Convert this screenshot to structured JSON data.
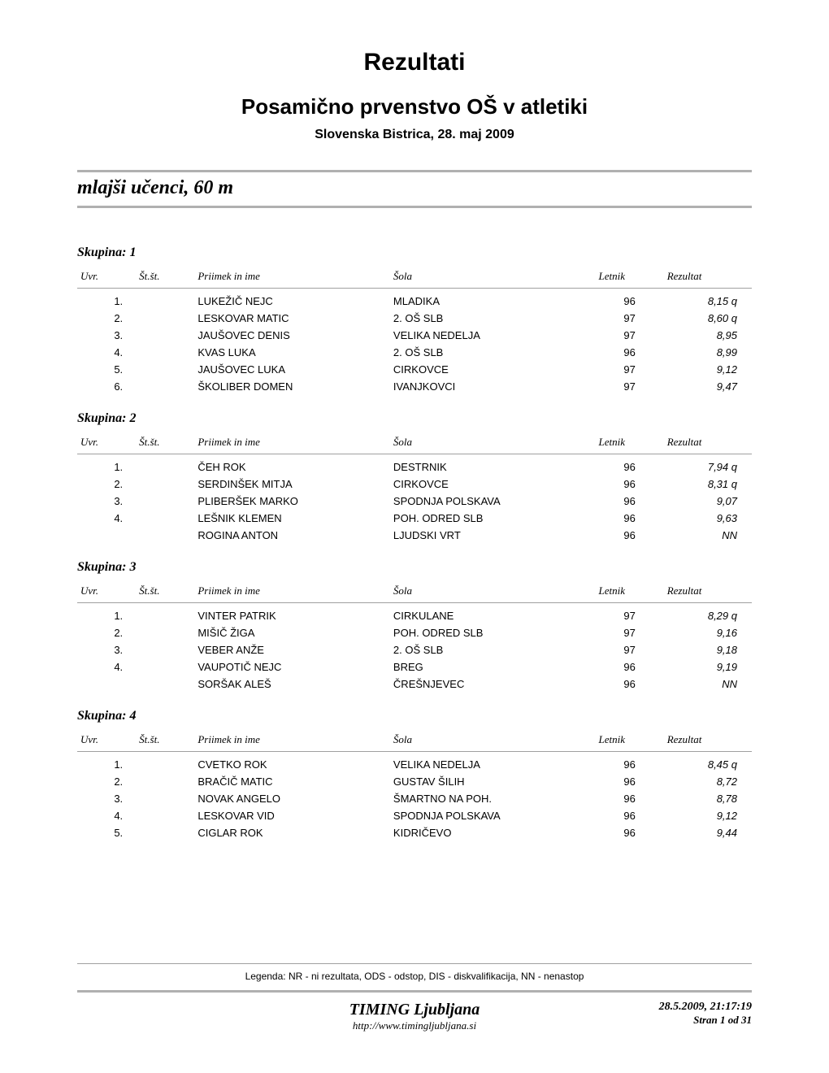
{
  "header": {
    "title_main": "Rezultati",
    "title_sub": "Posamično prvenstvo OŠ v atletiki",
    "location_date": "Slovenska Bistrica, 28. maj 2009"
  },
  "event": {
    "title": "mlajši učenci, 60 m"
  },
  "columns": {
    "uvr": "Uvr.",
    "stst": "Št.št.",
    "name": "Priimek in ime",
    "school": "Šola",
    "year": "Letnik",
    "result": "Rezultat"
  },
  "groups": [
    {
      "label": "Skupina: 1",
      "rows": [
        {
          "uvr": "1.",
          "stst": "",
          "name": "LUKEŽIČ NEJC",
          "school": "MLADIKA",
          "year": "96",
          "result": "8,15 q"
        },
        {
          "uvr": "2.",
          "stst": "",
          "name": "LESKOVAR MATIC",
          "school": "2. OŠ SLB",
          "year": "97",
          "result": "8,60 q"
        },
        {
          "uvr": "3.",
          "stst": "",
          "name": "JAUŠOVEC DENIS",
          "school": "VELIKA NEDELJA",
          "year": "97",
          "result": "8,95"
        },
        {
          "uvr": "4.",
          "stst": "",
          "name": "KVAS LUKA",
          "school": "2. OŠ SLB",
          "year": "96",
          "result": "8,99"
        },
        {
          "uvr": "5.",
          "stst": "",
          "name": "JAUŠOVEC LUKA",
          "school": "CIRKOVCE",
          "year": "97",
          "result": "9,12"
        },
        {
          "uvr": "6.",
          "stst": "",
          "name": "ŠKOLIBER DOMEN",
          "school": "IVANJKOVCI",
          "year": "97",
          "result": "9,47"
        }
      ]
    },
    {
      "label": "Skupina: 2",
      "rows": [
        {
          "uvr": "1.",
          "stst": "",
          "name": "ČEH ROK",
          "school": "DESTRNIK",
          "year": "96",
          "result": "7,94 q"
        },
        {
          "uvr": "2.",
          "stst": "",
          "name": "SERDINŠEK MITJA",
          "school": "CIRKOVCE",
          "year": "96",
          "result": "8,31 q"
        },
        {
          "uvr": "3.",
          "stst": "",
          "name": "PLIBERŠEK MARKO",
          "school": "SPODNJA POLSKAVA",
          "year": "96",
          "result": "9,07"
        },
        {
          "uvr": "4.",
          "stst": "",
          "name": "LEŠNIK KLEMEN",
          "school": "POH. ODRED SLB",
          "year": "96",
          "result": "9,63"
        },
        {
          "uvr": "",
          "stst": "",
          "name": "ROGINA ANTON",
          "school": "LJUDSKI VRT",
          "year": "96",
          "result": "NN"
        }
      ]
    },
    {
      "label": "Skupina: 3",
      "rows": [
        {
          "uvr": "1.",
          "stst": "",
          "name": "VINTER PATRIK",
          "school": "CIRKULANE",
          "year": "97",
          "result": "8,29 q"
        },
        {
          "uvr": "2.",
          "stst": "",
          "name": "MIŠIČ ŽIGA",
          "school": "POH. ODRED SLB",
          "year": "97",
          "result": "9,16"
        },
        {
          "uvr": "3.",
          "stst": "",
          "name": "VEBER ANŽE",
          "school": "2. OŠ SLB",
          "year": "97",
          "result": "9,18"
        },
        {
          "uvr": "4.",
          "stst": "",
          "name": "VAUPOTIČ NEJC",
          "school": "BREG",
          "year": "96",
          "result": "9,19"
        },
        {
          "uvr": "",
          "stst": "",
          "name": "SORŠAK ALEŠ",
          "school": "ČREŠNJEVEC",
          "year": "96",
          "result": "NN"
        }
      ]
    },
    {
      "label": "Skupina: 4",
      "rows": [
        {
          "uvr": "1.",
          "stst": "",
          "name": "CVETKO ROK",
          "school": "VELIKA NEDELJA",
          "year": "96",
          "result": "8,45 q"
        },
        {
          "uvr": "2.",
          "stst": "",
          "name": "BRAČIČ MATIC",
          "school": "GUSTAV ŠILIH",
          "year": "96",
          "result": "8,72"
        },
        {
          "uvr": "3.",
          "stst": "",
          "name": "NOVAK ANGELO",
          "school": "ŠMARTNO NA POH.",
          "year": "96",
          "result": "8,78"
        },
        {
          "uvr": "4.",
          "stst": "",
          "name": "LESKOVAR VID",
          "school": "SPODNJA POLSKAVA",
          "year": "96",
          "result": "9,12"
        },
        {
          "uvr": "5.",
          "stst": "",
          "name": "CIGLAR ROK",
          "school": "KIDRIČEVO",
          "year": "96",
          "result": "9,44"
        }
      ]
    }
  ],
  "legend": "Legenda: NR - ni rezultata, ODS - odstop, DIS - diskvalifikacija, NN - nenastop",
  "footer": {
    "org": "TIMING Ljubljana",
    "url": "http://www.timingljubljana.si",
    "timestamp": "28.5.2009, 21:17:19",
    "page": "Stran 1 od 31"
  },
  "style": {
    "background_color": "#ffffff",
    "text_color": "#000000",
    "divider_thick_color": "#b0b0b0",
    "divider_thin_color": "#a0a0a0",
    "title_main_fontsize": 30,
    "title_sub_fontsize": 26,
    "title_loc_fontsize": 16,
    "event_title_fontsize": 24,
    "group_label_fontsize": 16,
    "table_fontsize": 13,
    "legend_fontsize": 12,
    "footer_org_fontsize": 20
  }
}
